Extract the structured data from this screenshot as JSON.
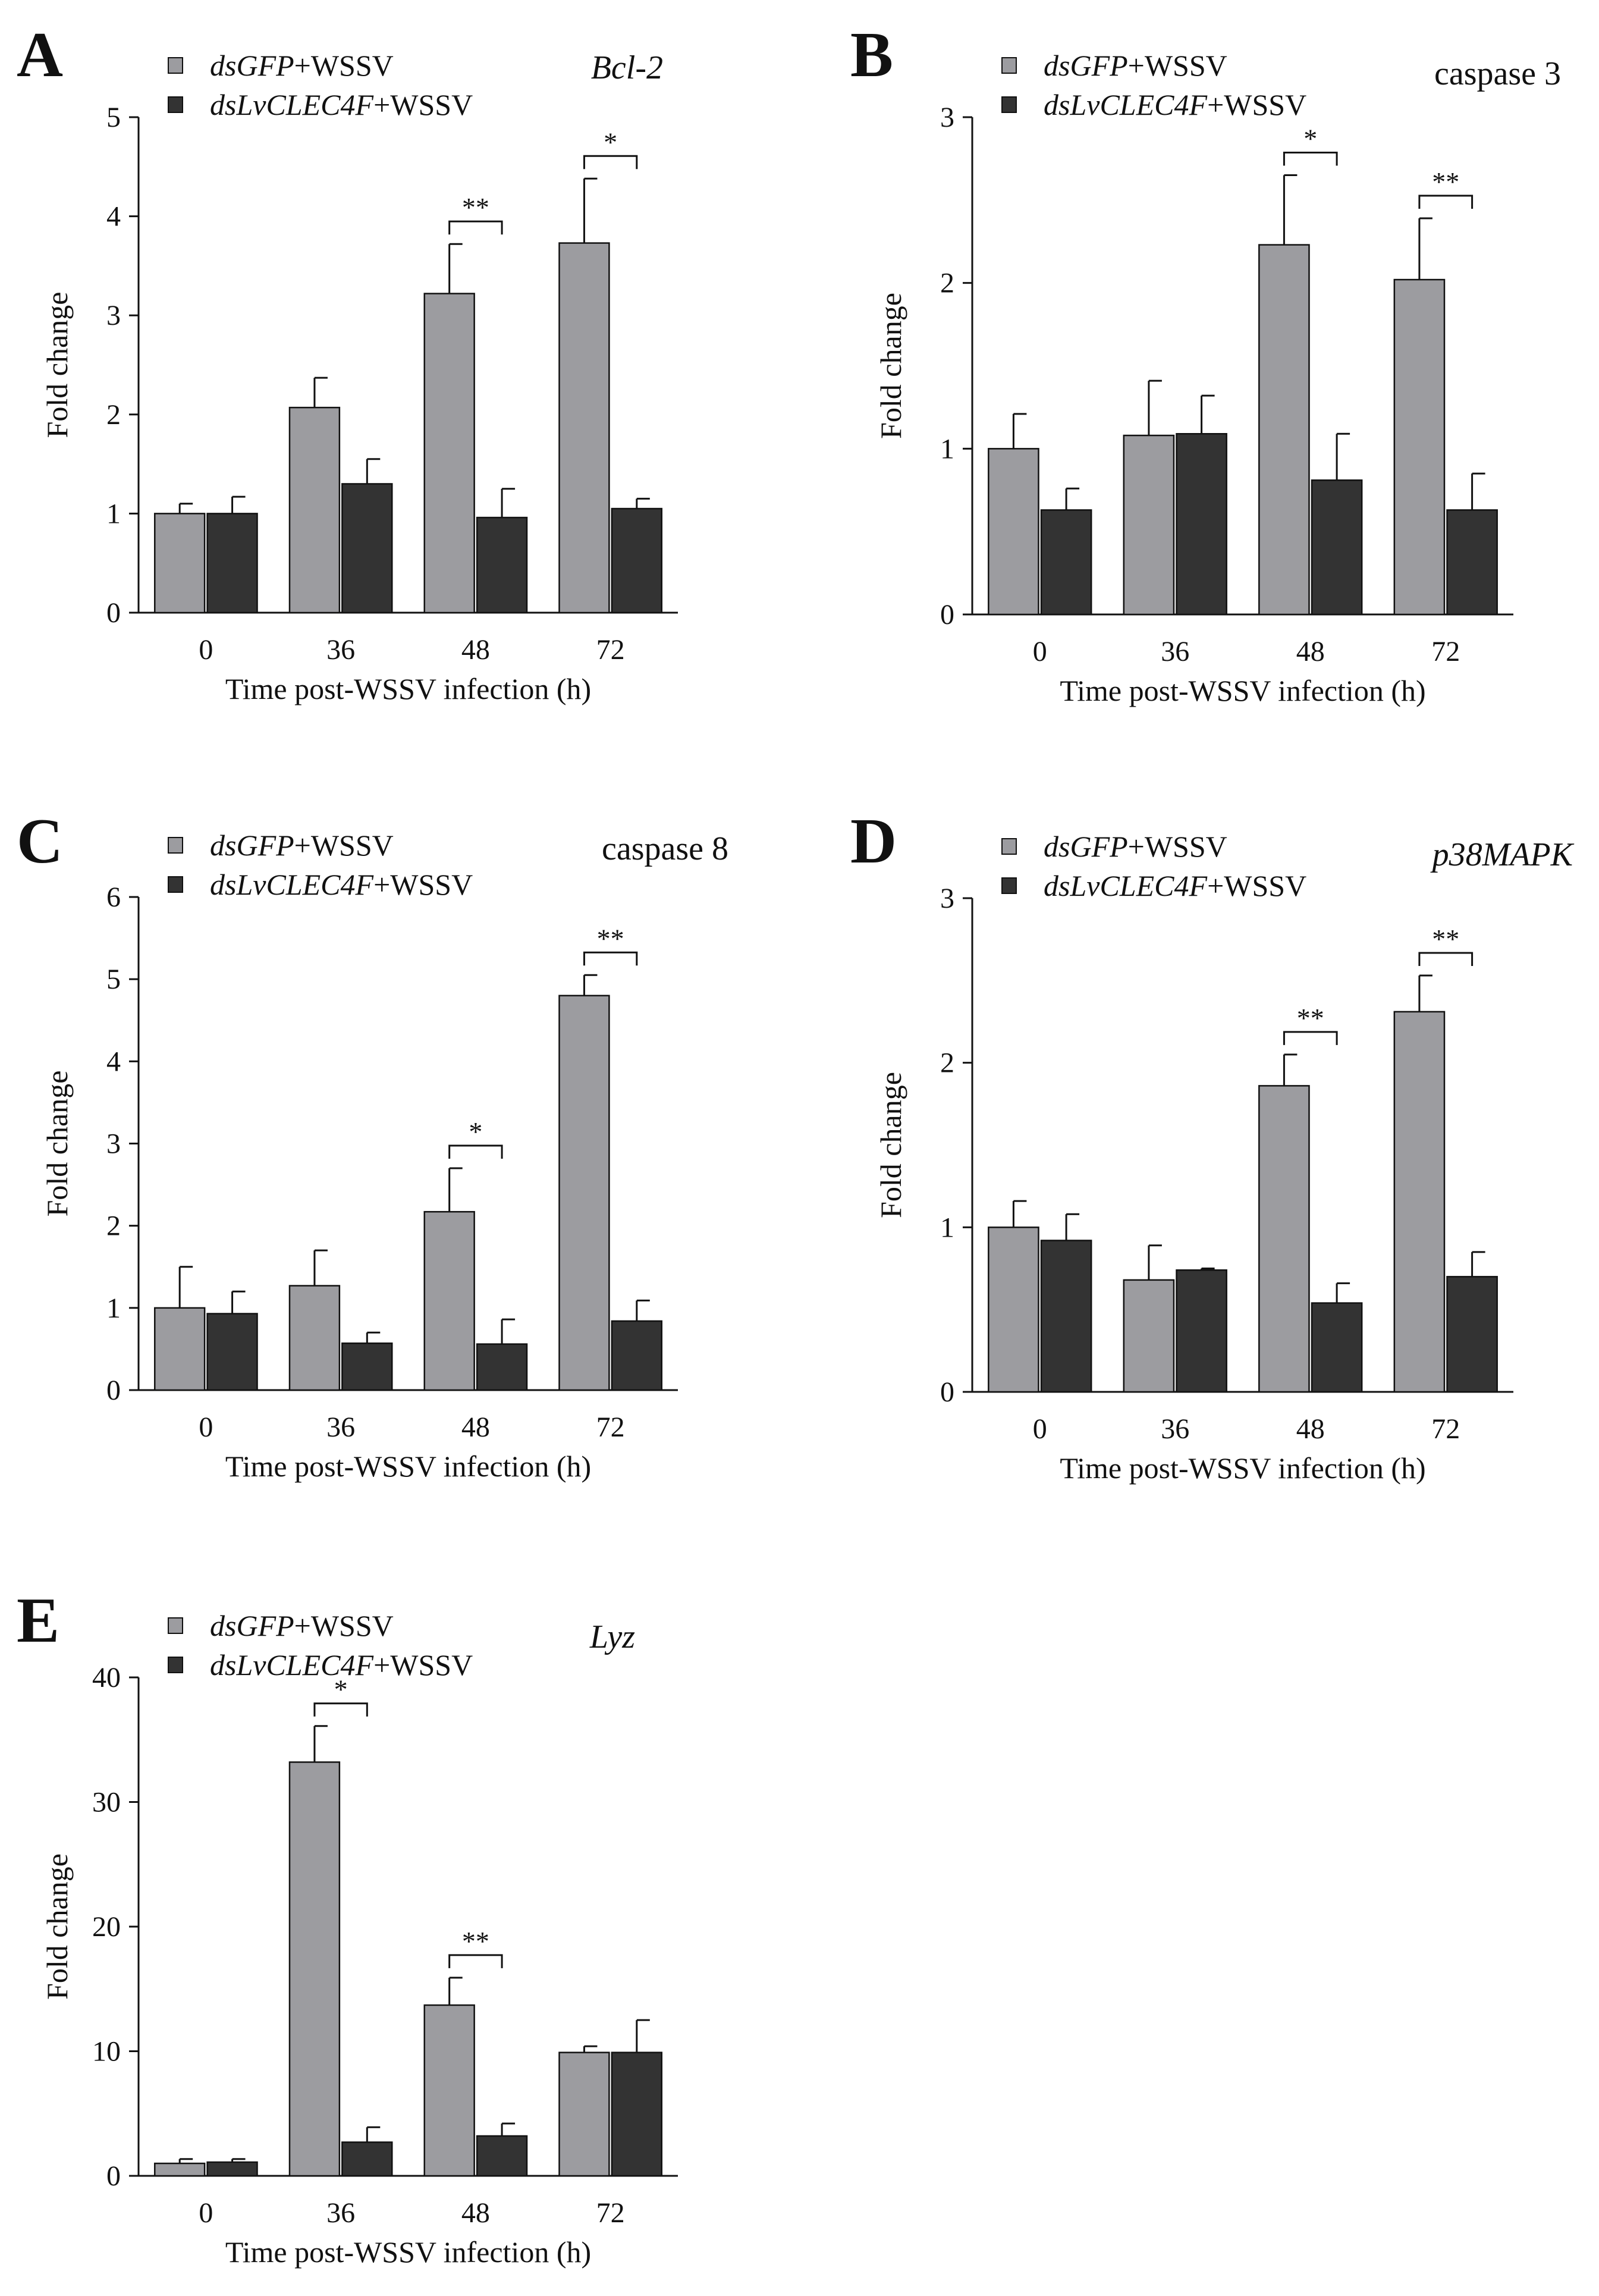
{
  "colors": {
    "dsGFP": "#9c9ca0",
    "dsLvCLEC4F": "#333333",
    "axis": "#111111",
    "bar_stroke": "#111111"
  },
  "legend": {
    "series1_italic": "dsGFP",
    "series1_suffix": "+WSSV",
    "series2_italic": "dsLvCLEC4F",
    "series2_suffix": "+WSSV"
  },
  "chart_data": [
    {
      "panel": "A",
      "type": "bar",
      "title": "Bcl-2",
      "title_italic": true,
      "xlabel": "Time post-WSSV infection (h)",
      "ylabel": "Fold change",
      "categories": [
        "0",
        "36",
        "48",
        "72"
      ],
      "ylim": [
        0,
        5
      ],
      "yticks": [
        0,
        1,
        2,
        3,
        4,
        5
      ],
      "legend_placement": "top-left",
      "series": [
        {
          "name": "dsGFP+WSSV",
          "values": [
            1.0,
            2.07,
            3.22,
            3.73
          ],
          "errors": [
            0.1,
            0.3,
            0.5,
            0.65
          ]
        },
        {
          "name": "dsLvCLEC4F+WSSV",
          "values": [
            1.0,
            1.3,
            0.96,
            1.05
          ],
          "errors": [
            0.17,
            0.25,
            0.29,
            0.1
          ]
        }
      ],
      "significance": [
        {
          "category": "48",
          "label": "**"
        },
        {
          "category": "72",
          "label": "*"
        }
      ]
    },
    {
      "panel": "B",
      "type": "bar",
      "title": "caspase 3",
      "title_italic": false,
      "xlabel": "Time post-WSSV infection (h)",
      "ylabel": "Fold change",
      "categories": [
        "0",
        "36",
        "48",
        "72"
      ],
      "ylim": [
        0,
        3
      ],
      "yticks": [
        0,
        1,
        2,
        3
      ],
      "legend_placement": "top-left",
      "series": [
        {
          "name": "dsGFP+WSSV",
          "values": [
            1.0,
            1.08,
            2.23,
            2.02
          ],
          "errors": [
            0.21,
            0.33,
            0.42,
            0.37
          ]
        },
        {
          "name": "dsLvCLEC4F+WSSV",
          "values": [
            0.63,
            1.09,
            0.81,
            0.63
          ],
          "errors": [
            0.13,
            0.23,
            0.28,
            0.22
          ]
        }
      ],
      "significance": [
        {
          "category": "48",
          "label": "*"
        },
        {
          "category": "72",
          "label": "**"
        }
      ]
    },
    {
      "panel": "C",
      "type": "bar",
      "title": "caspase 8",
      "title_italic": false,
      "xlabel": "Time post-WSSV infection (h)",
      "ylabel": "Fold change",
      "categories": [
        "0",
        "36",
        "48",
        "72"
      ],
      "ylim": [
        0,
        6
      ],
      "yticks": [
        0,
        1,
        2,
        3,
        4,
        5,
        6
      ],
      "legend_placement": "top-left",
      "series": [
        {
          "name": "dsGFP+WSSV",
          "values": [
            1.0,
            1.27,
            2.17,
            4.8
          ],
          "errors": [
            0.5,
            0.43,
            0.53,
            0.25
          ]
        },
        {
          "name": "dsLvCLEC4F+WSSV",
          "values": [
            0.93,
            0.57,
            0.56,
            0.84
          ],
          "errors": [
            0.27,
            0.13,
            0.3,
            0.25
          ]
        }
      ],
      "significance": [
        {
          "category": "48",
          "label": "*"
        },
        {
          "category": "72",
          "label": "**"
        }
      ]
    },
    {
      "panel": "D",
      "type": "bar",
      "title": "p38MAPK",
      "title_italic": true,
      "xlabel": "Time post-WSSV infection (h)",
      "ylabel": "Fold change",
      "categories": [
        "0",
        "36",
        "48",
        "72"
      ],
      "ylim": [
        0,
        3
      ],
      "yticks": [
        0,
        1,
        2,
        3
      ],
      "legend_placement": "top-left",
      "series": [
        {
          "name": "dsGFP+WSSV",
          "values": [
            1.0,
            0.68,
            1.86,
            2.31
          ],
          "errors": [
            0.16,
            0.21,
            0.19,
            0.22
          ]
        },
        {
          "name": "dsLvCLEC4F+WSSV",
          "values": [
            0.92,
            0.74,
            0.54,
            0.7
          ],
          "errors": [
            0.16,
            0.01,
            0.12,
            0.15
          ]
        }
      ],
      "significance": [
        {
          "category": "48",
          "label": "**"
        },
        {
          "category": "72",
          "label": "**"
        }
      ]
    },
    {
      "panel": "E",
      "type": "bar",
      "title": "Lyz",
      "title_italic": true,
      "xlabel": "Time post-WSSV infection (h)",
      "ylabel": "Fold change",
      "categories": [
        "0",
        "36",
        "48",
        "72"
      ],
      "ylim": [
        0,
        40
      ],
      "yticks": [
        0,
        10,
        20,
        30,
        40
      ],
      "legend_placement": "top-left",
      "series": [
        {
          "name": "dsGFP+WSSV",
          "values": [
            1.0,
            33.2,
            13.7,
            9.9
          ],
          "errors": [
            0.35,
            2.9,
            2.2,
            0.5
          ]
        },
        {
          "name": "dsLvCLEC4F+WSSV",
          "values": [
            1.1,
            2.7,
            3.2,
            9.9
          ],
          "errors": [
            0.25,
            1.2,
            1.0,
            2.6
          ]
        }
      ],
      "significance": [
        {
          "category": "36",
          "label": "*"
        },
        {
          "category": "48",
          "label": "**"
        }
      ]
    }
  ]
}
